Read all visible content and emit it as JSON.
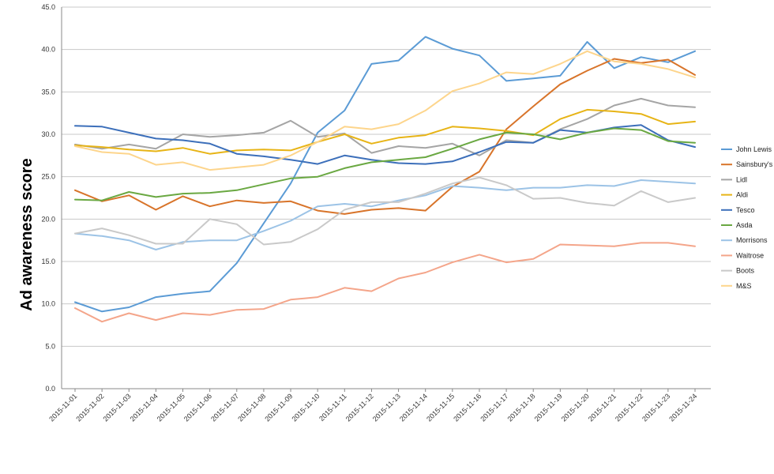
{
  "chart_data": {
    "type": "line",
    "ylabel": "Ad awareness score",
    "ylim": [
      0,
      45
    ],
    "y_ticks": [
      "0.0",
      "5.0",
      "10.0",
      "15.0",
      "20.0",
      "25.0",
      "30.0",
      "35.0",
      "40.0",
      "45.0"
    ],
    "grid": true,
    "legend_position": "right",
    "categories": [
      "2015-11-01",
      "2015-11-02",
      "2015-11-03",
      "2015-11-04",
      "2015-11-05",
      "2015-11-06",
      "2015-11-07",
      "2015-11-08",
      "2015-11-09",
      "2015-11-10",
      "2015-11-11",
      "2015-11-12",
      "2015-11-13",
      "2015-11-14",
      "2015-11-15",
      "2015-11-16",
      "2015-11-17",
      "2015-11-18",
      "2015-11-19",
      "2015-11-20",
      "2015-11-21",
      "2015-11-22",
      "2015-11-23",
      "2015-11-24"
    ],
    "series": [
      {
        "name": "John Lewis",
        "color": "#5b9bd5",
        "values": [
          10.2,
          9.1,
          9.6,
          10.8,
          11.2,
          11.5,
          14.8,
          19.5,
          24.2,
          30.2,
          32.8,
          38.3,
          38.7,
          41.5,
          40.1,
          39.3,
          36.3,
          36.6,
          36.9,
          40.9,
          37.8,
          39.1,
          38.5,
          39.8
        ]
      },
      {
        "name": "Sainsbury's",
        "color": "#d8742a",
        "values": [
          23.4,
          22.1,
          22.8,
          21.1,
          22.7,
          21.5,
          22.2,
          21.9,
          22.1,
          21.0,
          20.6,
          21.1,
          21.3,
          21.0,
          23.8,
          25.6,
          30.6,
          33.3,
          35.9,
          37.5,
          38.9,
          38.4,
          38.8,
          37.0
        ]
      },
      {
        "name": "Lidl",
        "color": "#a5a5a5",
        "values": [
          28.8,
          28.3,
          28.8,
          28.3,
          30.0,
          29.7,
          29.9,
          30.2,
          31.6,
          29.7,
          30.1,
          27.8,
          28.6,
          28.4,
          28.9,
          27.5,
          29.3,
          29.0,
          30.6,
          31.8,
          33.4,
          34.2,
          33.4,
          33.2
        ]
      },
      {
        "name": "Aldi",
        "color": "#e7b416",
        "values": [
          28.7,
          28.5,
          28.2,
          28.0,
          28.4,
          27.7,
          28.1,
          28.2,
          28.1,
          29.1,
          30.0,
          28.9,
          29.6,
          29.9,
          30.9,
          30.7,
          30.4,
          29.9,
          31.8,
          32.9,
          32.7,
          32.4,
          31.2,
          31.5
        ]
      },
      {
        "name": "Tesco",
        "color": "#3c6fba",
        "values": [
          31.0,
          30.9,
          30.2,
          29.5,
          29.3,
          28.9,
          27.7,
          27.4,
          27.0,
          26.5,
          27.5,
          27.0,
          26.6,
          26.5,
          26.8,
          27.9,
          29.1,
          29.0,
          30.5,
          30.2,
          30.8,
          31.1,
          29.3,
          28.5
        ]
      },
      {
        "name": "Asda",
        "color": "#6aa842",
        "values": [
          22.3,
          22.2,
          23.2,
          22.6,
          23.0,
          23.1,
          23.4,
          24.1,
          24.8,
          25.0,
          26.0,
          26.7,
          27.0,
          27.3,
          28.3,
          29.4,
          30.2,
          30.0,
          29.4,
          30.2,
          30.7,
          30.5,
          29.2,
          29.0
        ]
      },
      {
        "name": "Morrisons",
        "color": "#9cc3e6",
        "values": [
          18.3,
          18.0,
          17.5,
          16.4,
          17.3,
          17.5,
          17.5,
          18.6,
          19.8,
          21.5,
          21.8,
          21.5,
          22.2,
          22.8,
          23.9,
          23.7,
          23.4,
          23.7,
          23.7,
          24.0,
          23.9,
          24.6,
          24.4,
          24.2
        ]
      },
      {
        "name": "Waitrose",
        "color": "#f4a58a",
        "values": [
          9.5,
          7.9,
          8.9,
          8.1,
          8.9,
          8.7,
          9.3,
          9.4,
          10.5,
          10.8,
          11.9,
          11.5,
          13.0,
          13.7,
          14.9,
          15.8,
          14.9,
          15.3,
          17.0,
          16.9,
          16.8,
          17.2,
          17.2,
          16.8
        ]
      },
      {
        "name": "Boots",
        "color": "#c9c9c9",
        "values": [
          18.3,
          18.9,
          18.1,
          17.1,
          17.1,
          20.0,
          19.4,
          17.0,
          17.3,
          18.8,
          21.1,
          22.0,
          22.0,
          23.0,
          24.2,
          24.9,
          24.0,
          22.4,
          22.5,
          21.9,
          21.6,
          23.3,
          22.0,
          22.5
        ]
      },
      {
        "name": "M&S",
        "color": "#fdd58c",
        "values": [
          28.6,
          27.9,
          27.7,
          26.4,
          26.7,
          25.8,
          26.1,
          26.4,
          27.5,
          29.1,
          30.9,
          30.6,
          31.2,
          32.8,
          35.1,
          36.0,
          37.3,
          37.1,
          38.3,
          39.8,
          38.6,
          38.3,
          37.7,
          36.7
        ]
      }
    ]
  }
}
